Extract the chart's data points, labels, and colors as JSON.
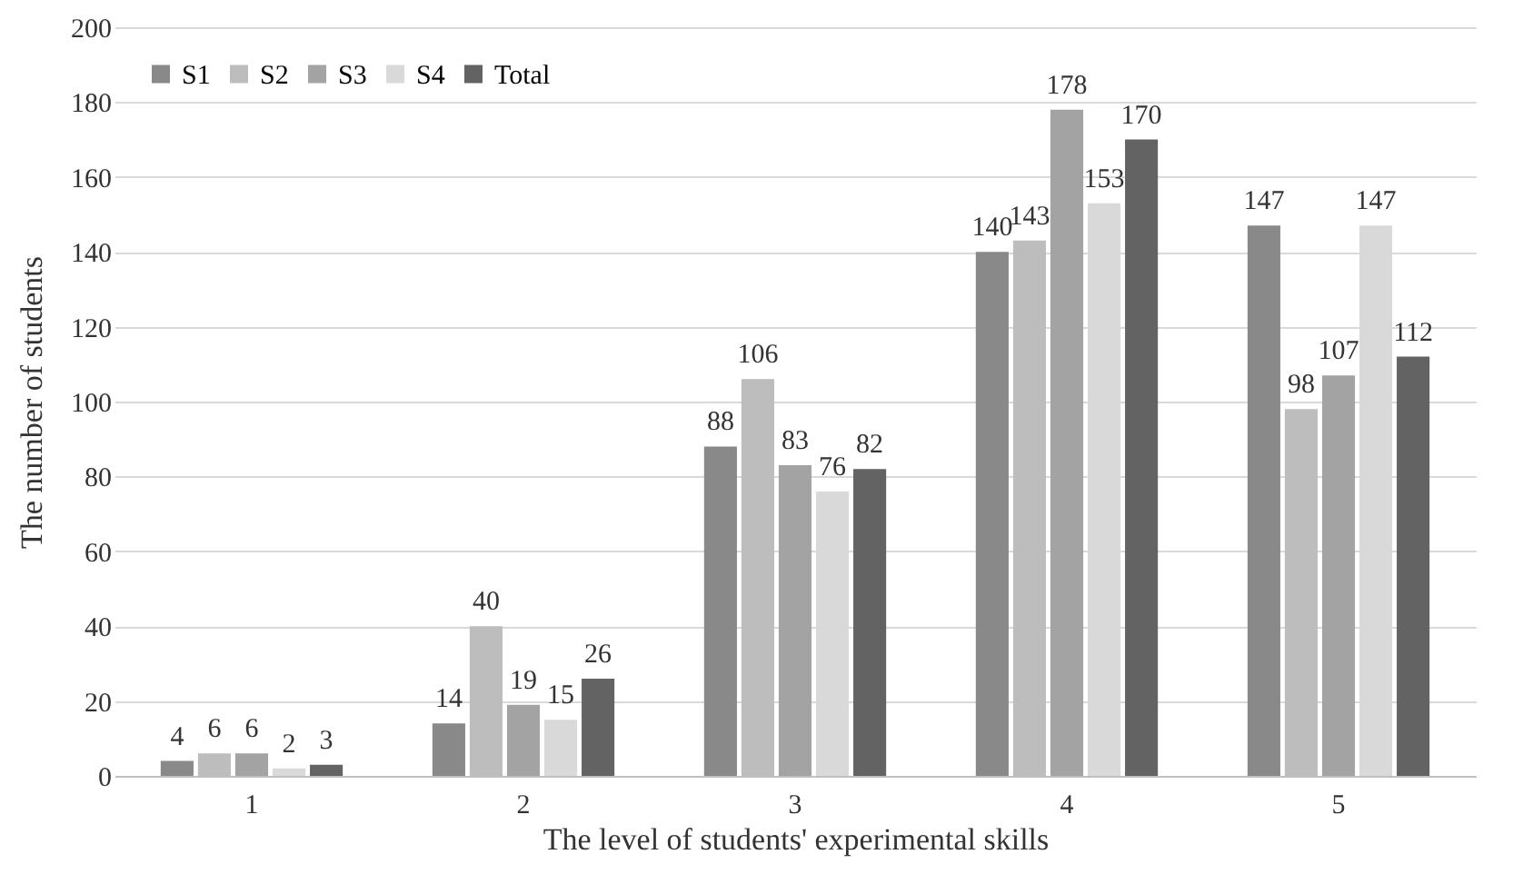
{
  "chart_data": {
    "type": "bar",
    "xlabel": "The level of students' experimental skills",
    "ylabel": "The number of students",
    "categories": [
      "1",
      "2",
      "3",
      "4",
      "5"
    ],
    "series": [
      {
        "name": "S1",
        "color": "#898989",
        "values": [
          4,
          14,
          88,
          140,
          147
        ]
      },
      {
        "name": "S2",
        "color": "#bdbdbd",
        "values": [
          6,
          40,
          106,
          143,
          98
        ]
      },
      {
        "name": "S3",
        "color": "#a3a3a3",
        "values": [
          6,
          19,
          83,
          178,
          107
        ]
      },
      {
        "name": "S4",
        "color": "#d9d9d9",
        "values": [
          2,
          15,
          76,
          153,
          147
        ]
      },
      {
        "name": "Total",
        "color": "#636363",
        "values": [
          3,
          26,
          82,
          170,
          112
        ]
      }
    ],
    "ylim": [
      0,
      200
    ],
    "yticks": [
      0,
      20,
      40,
      60,
      80,
      100,
      120,
      140,
      160,
      180,
      200
    ],
    "grid": "y",
    "legend": "top left",
    "data_labels": true
  }
}
